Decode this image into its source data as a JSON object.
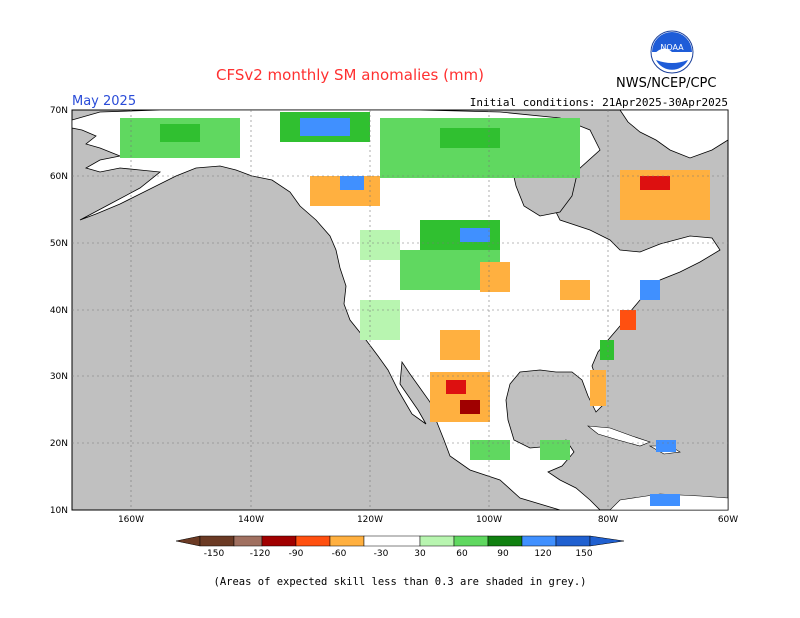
{
  "header": {
    "title": "CFSv2 monthly SM anomalies (mm)",
    "month": "May 2025",
    "initial_conditions": "Initial conditions: 21Apr2025-30Apr2025",
    "organization": "NWS/NCEP/CPC",
    "logo_text": "NOAA"
  },
  "map": {
    "region": "North America",
    "lat_labels": [
      "70N",
      "60N",
      "50N",
      "40N",
      "30N",
      "20N",
      "10N"
    ],
    "lon_labels": [
      "160W",
      "140W",
      "120W",
      "100W",
      "80W",
      "60W"
    ],
    "ocean_color": "#c0c0c0",
    "land_color": "#ffffff"
  },
  "colorbar": {
    "labels": [
      "-150",
      "-120",
      "-90",
      "-60",
      "-30",
      "30",
      "60",
      "90",
      "120",
      "150"
    ],
    "colors": [
      "#6b3a24",
      "#a07060",
      "#a00000",
      "#dd1010",
      "#ff5010",
      "#ffb040",
      "#ffffff",
      "#b8f5b0",
      "#60d860",
      "#30c030",
      "#108010",
      "#4090ff",
      "#2060d0"
    ]
  },
  "footer": {
    "note": "(Areas of expected skill less than 0.3 are shaded in grey.)"
  },
  "colors": {
    "title": "#ff3030",
    "month": "#2a4cd8"
  }
}
